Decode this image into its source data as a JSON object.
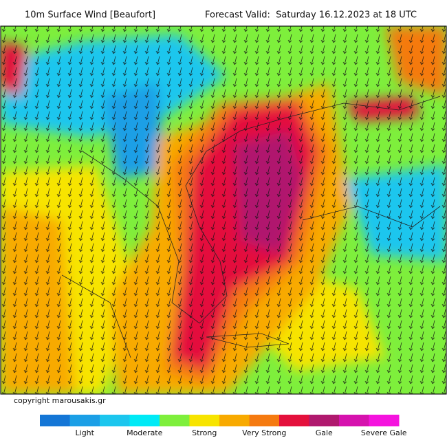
{
  "header": {
    "title": "10m Surface Wind [Beaufort]",
    "forecast": "Forecast Valid:  Saturday 16.12.2023 at 18 UTC"
  },
  "copyright": "copyright marousakis.gr",
  "legend": {
    "colors": [
      "#1476d6",
      "#1b9fe6",
      "#1cc6ee",
      "#00eaf6",
      "#7eef3c",
      "#f7e400",
      "#f8aa00",
      "#f57a10",
      "#e4103c",
      "#b0196e",
      "#d612ae",
      "#f513de"
    ],
    "labels": [
      "Light",
      "Moderate",
      "Strong",
      "Very Strong",
      "Gale",
      "Severe Gale"
    ]
  }
}
